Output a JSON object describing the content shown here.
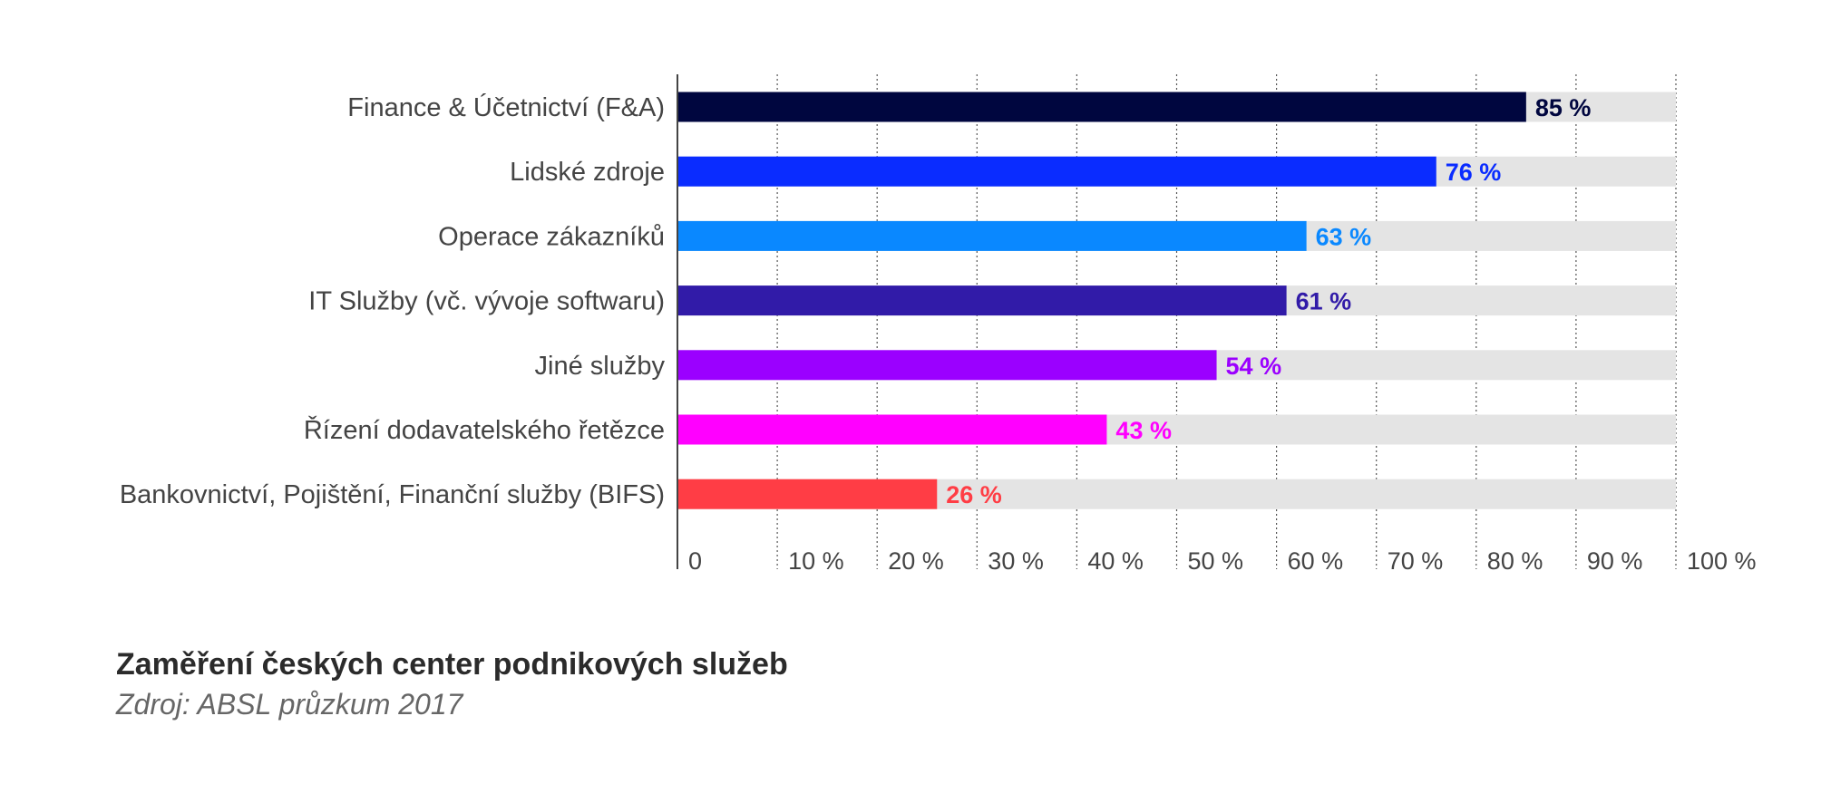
{
  "caption": {
    "title": "Zaměření českých center podnikových služeb",
    "source": "Zdroj: ABSL průzkum 2017"
  },
  "chart_data": {
    "type": "bar",
    "orientation": "horizontal",
    "categories": [
      "Finance & Účetnictví (F&A)",
      "Lidské zdroje",
      "Operace zákazníků",
      "IT Služby (vč. vývoje softwaru)",
      "Jiné služby",
      "Řízení dodavatelského řetězce",
      "Bankovnictví, Pojištění, Finanční služby (BIFS)"
    ],
    "values": [
      85,
      76,
      63,
      61,
      54,
      43,
      26
    ],
    "value_labels": [
      "85 %",
      "76 %",
      "63 %",
      "61 %",
      "54 %",
      "43 %",
      "26 %"
    ],
    "colors": [
      "#00063f",
      "#0a2cff",
      "#0a88ff",
      "#311ba8",
      "#9b00ff",
      "#ff00ff",
      "#ff3d45"
    ],
    "background_bar_color": "#e4e4e4",
    "xlim": [
      0,
      100
    ],
    "ticks": [
      0,
      10,
      20,
      30,
      40,
      50,
      60,
      70,
      80,
      90,
      100
    ],
    "tick_labels": [
      "0",
      "10 %",
      "20 %",
      "30 %",
      "40 %",
      "50 %",
      "60 %",
      "70 %",
      "80 %",
      "90 %",
      "100 %"
    ],
    "grid": "vertical dotted"
  }
}
